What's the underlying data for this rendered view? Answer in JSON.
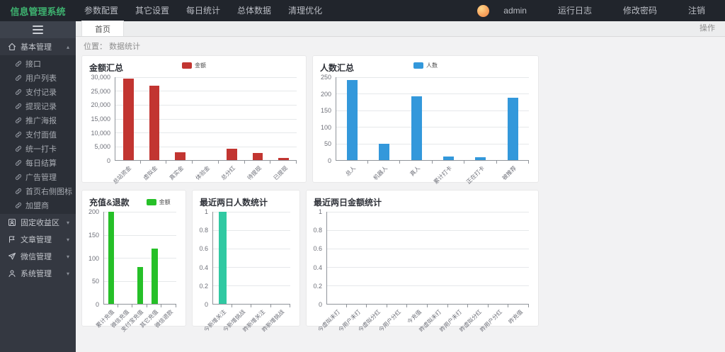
{
  "app": {
    "title": "信息管理系统"
  },
  "navbar": {
    "menu": [
      "参数配置",
      "其它设置",
      "每日统计",
      "总体数据",
      "清理优化"
    ],
    "user": "admin",
    "right_menu": [
      "运行日志",
      "修改密码",
      "注销"
    ]
  },
  "sidebar": {
    "sections": [
      {
        "name": "basic-management",
        "label": "基本管理",
        "icon": "home-icon",
        "expanded": true,
        "children": [
          "接口",
          "用户列表",
          "支付记录",
          "提现记录",
          "推广海报",
          "支付面值",
          "统一打卡",
          "每日结算",
          "广告管理",
          "首页右侧图标",
          "加盟商"
        ]
      },
      {
        "name": "fixed-income",
        "label": "固定收益区",
        "icon": "user-badge-icon",
        "expanded": false
      },
      {
        "name": "article-management",
        "label": "文章管理",
        "icon": "flag-icon",
        "expanded": false
      },
      {
        "name": "wechat-management",
        "label": "微信管理",
        "icon": "send-icon",
        "expanded": false
      },
      {
        "name": "system-management",
        "label": "系统管理",
        "icon": "person-icon",
        "expanded": false
      }
    ]
  },
  "tabs": {
    "active": "首页",
    "action_label": "操作"
  },
  "breadcrumb": {
    "label": "位置：",
    "value": "数据统计"
  },
  "colors": {
    "red": "#c23531",
    "blue": "#3398db",
    "green": "#26c028",
    "teal": "#30c9a2"
  },
  "chart_data": [
    {
      "type": "bar",
      "title": "金额汇总",
      "legend": "金额",
      "color": "#c23531",
      "legend_pos": "center",
      "grid": true,
      "y_gutter": 40,
      "categories": [
        "总站资金",
        "虚拟金",
        "真实金",
        "体验金",
        "总分红",
        "待提现",
        "已提现"
      ],
      "values": [
        29500,
        27000,
        2700,
        0,
        4200,
        2500,
        800
      ],
      "ylim": [
        0,
        30000
      ],
      "yticks": [
        "30,000",
        "25,000",
        "20,000",
        "15,000",
        "10,000",
        "5,000",
        "0"
      ]
    },
    {
      "type": "bar",
      "title": "人数汇总",
      "legend": "人数",
      "color": "#3398db",
      "legend_pos": "center",
      "grid": true,
      "y_gutter": 26,
      "categories": [
        "总人",
        "机器人",
        "真人",
        "累计打卡",
        "正在打卡",
        "被推荐"
      ],
      "values": [
        242,
        50,
        193,
        10,
        8,
        187
      ],
      "ylim": [
        0,
        250
      ],
      "yticks": [
        "250",
        "200",
        "150",
        "100",
        "50",
        "0"
      ]
    },
    {
      "type": "bar",
      "title": "充值&退款",
      "legend": "金额",
      "color": "#26c028",
      "legend_pos": "after-title",
      "grid": true,
      "y_gutter": 24,
      "categories": [
        "累计充值",
        "微信充值",
        "支付宝充值",
        "其它充值",
        "微信退款"
      ],
      "values": [
        200,
        0,
        80,
        120,
        0
      ],
      "ylim": [
        0,
        200
      ],
      "yticks": [
        "200",
        "150",
        "100",
        "50",
        "0"
      ]
    },
    {
      "type": "bar",
      "title": "最近两日人数统计",
      "legend": null,
      "color": "#30c9a2",
      "legend_pos": "none",
      "grid": true,
      "y_gutter": 22,
      "categories": [
        "今新增关注",
        "今新增挑战",
        "昨新增关注",
        "昨新增挑战"
      ],
      "values": [
        1,
        0,
        0,
        0
      ],
      "ylim": [
        0,
        1
      ],
      "yticks": [
        "1",
        "0.8",
        "0.6",
        "0.4",
        "0.2",
        "0"
      ]
    },
    {
      "type": "bar",
      "title": "最近两日金额统计",
      "legend": null,
      "color": "#30c9a2",
      "legend_pos": "none",
      "grid": true,
      "y_gutter": 22,
      "categories": [
        "今虚拟未打",
        "今用户未打",
        "今虚拟分红",
        "今用户分红",
        "今充值",
        "昨虚拟未打",
        "昨用户未打",
        "昨虚拟分红",
        "昨用户分红",
        "昨充值"
      ],
      "values": [
        0,
        0,
        0,
        0,
        0,
        0,
        0,
        0,
        0,
        0
      ],
      "ylim": [
        0,
        1
      ],
      "yticks": [
        "1",
        "0.8",
        "0.6",
        "0.4",
        "0.2",
        "0"
      ]
    }
  ]
}
